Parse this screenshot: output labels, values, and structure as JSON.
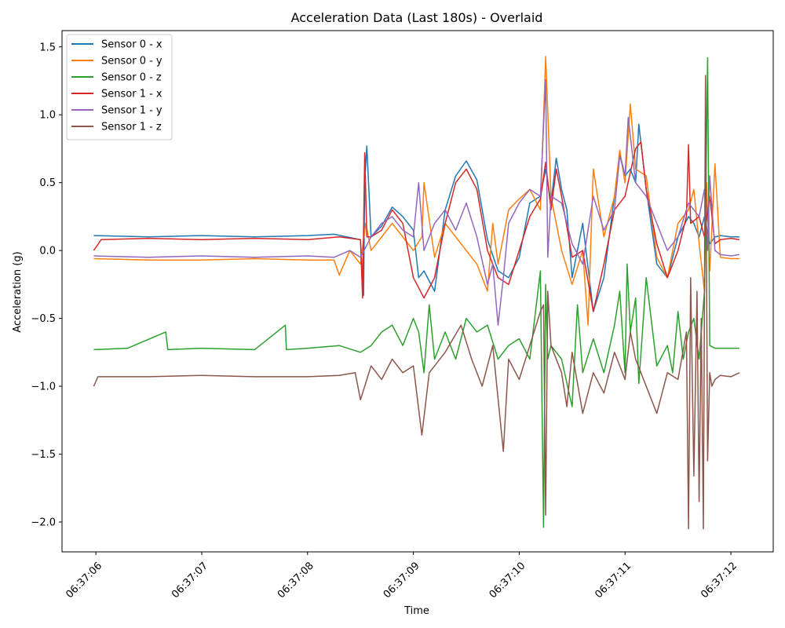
{
  "chart_data": {
    "type": "line",
    "title": "Acceleration Data (Last 180s) - Overlaid",
    "xlabel": "Time",
    "ylabel": "Acceleration (g)",
    "xlim": [
      "06:37:05.680",
      "06:37:12.400"
    ],
    "ylim": [
      -2.22,
      1.62
    ],
    "x_ticks": [
      "06:37:06",
      "06:37:07",
      "06:37:08",
      "06:37:09",
      "06:37:10",
      "06:37:11",
      "06:37:12"
    ],
    "y_ticks": [
      1.5,
      1.0,
      0.5,
      0.0,
      -0.5,
      -1.0,
      -1.5,
      -2.0
    ],
    "y_tick_labels": [
      "1.5",
      "1.0",
      "0.5",
      "0.0",
      "−0.5",
      "−1.0",
      "−1.5",
      "−2.0"
    ],
    "grid": false,
    "legend_position": "top-left",
    "x_unit": "time (HH:MM:SS.mmm)",
    "series": [
      {
        "name": "Sensor 0 - x",
        "color": "#1f77b4",
        "x": [
          "06:37:05.980",
          "06:37:06.500",
          "06:37:07.000",
          "06:37:07.500",
          "06:37:08.000",
          "06:37:08.250",
          "06:37:08.500",
          "06:37:08.530",
          "06:37:08.540",
          "06:37:08.560",
          "06:37:08.600",
          "06:37:08.700",
          "06:37:08.800",
          "06:37:08.900",
          "06:37:09.000",
          "06:37:09.050",
          "06:37:09.100",
          "06:37:09.200",
          "06:37:09.300",
          "06:37:09.400",
          "06:37:09.500",
          "06:37:09.600",
          "06:37:09.700",
          "06:37:09.800",
          "06:37:09.900",
          "06:37:10.000",
          "06:37:10.100",
          "06:37:10.200",
          "06:37:10.250",
          "06:37:10.300",
          "06:37:10.350",
          "06:37:10.400",
          "06:37:10.450",
          "06:37:10.500",
          "06:37:10.600",
          "06:37:10.700",
          "06:37:10.800",
          "06:37:10.900",
          "06:37:10.950",
          "06:37:11.000",
          "06:37:11.050",
          "06:37:11.100",
          "06:37:11.130",
          "06:37:11.200",
          "06:37:11.300",
          "06:37:11.400",
          "06:37:11.500",
          "06:37:11.600",
          "06:37:11.650",
          "06:37:11.700",
          "06:37:11.750",
          "06:37:11.800",
          "06:37:11.850",
          "06:37:11.900",
          "06:37:12.000",
          "06:37:12.080"
        ],
        "y": [
          0.11,
          0.1,
          0.11,
          0.1,
          0.11,
          0.12,
          0.08,
          -0.33,
          0.5,
          0.77,
          0.1,
          0.18,
          0.32,
          0.25,
          0.15,
          -0.2,
          -0.15,
          -0.3,
          0.3,
          0.55,
          0.66,
          0.52,
          0.08,
          -0.15,
          -0.2,
          -0.05,
          0.35,
          0.4,
          0.6,
          0.35,
          0.68,
          0.45,
          0.3,
          -0.2,
          0.2,
          -0.45,
          -0.2,
          0.4,
          0.72,
          0.55,
          0.6,
          0.5,
          0.93,
          0.45,
          -0.1,
          -0.2,
          0.1,
          0.25,
          0.2,
          0.1,
          0.25,
          0.05,
          0.1,
          0.11,
          0.1,
          0.1
        ]
      },
      {
        "name": "Sensor 0 - y",
        "color": "#ff7f0e",
        "x": [
          "06:37:05.980",
          "06:37:06.500",
          "06:37:07.000",
          "06:37:07.500",
          "06:37:08.000",
          "06:37:08.250",
          "06:37:08.300",
          "06:37:08.400",
          "06:37:08.500",
          "06:37:08.550",
          "06:37:08.600",
          "06:37:08.700",
          "06:37:08.800",
          "06:37:08.900",
          "06:37:09.000",
          "06:37:09.080",
          "06:37:09.100",
          "06:37:09.200",
          "06:37:09.300",
          "06:37:09.400",
          "06:37:09.500",
          "06:37:09.600",
          "06:37:09.700",
          "06:37:09.750",
          "06:37:09.800",
          "06:37:09.900",
          "06:37:10.000",
          "06:37:10.100",
          "06:37:10.200",
          "06:37:10.250",
          "06:37:10.300",
          "06:37:10.350",
          "06:37:10.400",
          "06:37:10.500",
          "06:37:10.600",
          "06:37:10.650",
          "06:37:10.700",
          "06:37:10.800",
          "06:37:10.900",
          "06:37:10.950",
          "06:37:11.000",
          "06:37:11.050",
          "06:37:11.100",
          "06:37:11.200",
          "06:37:11.300",
          "06:37:11.400",
          "06:37:11.500",
          "06:37:11.600",
          "06:37:11.650",
          "06:37:11.700",
          "06:37:11.750",
          "06:37:11.770",
          "06:37:11.790",
          "06:37:11.800",
          "06:37:11.850",
          "06:37:11.900",
          "06:37:12.000",
          "06:37:12.080"
        ],
        "y": [
          -0.06,
          -0.07,
          -0.07,
          -0.06,
          -0.07,
          -0.07,
          -0.18,
          0.0,
          -0.1,
          0.2,
          0.0,
          0.1,
          0.2,
          0.1,
          0.0,
          0.1,
          0.5,
          -0.05,
          0.2,
          0.1,
          0.0,
          -0.1,
          -0.3,
          0.2,
          -0.1,
          0.3,
          0.38,
          0.45,
          0.3,
          1.43,
          0.4,
          0.2,
          0.0,
          -0.25,
          0.0,
          -0.55,
          0.6,
          0.1,
          0.4,
          0.74,
          0.5,
          1.08,
          0.6,
          0.55,
          -0.05,
          -0.2,
          0.2,
          0.3,
          0.45,
          0.05,
          -0.3,
          0.5,
          0.05,
          -0.15,
          0.64,
          -0.05,
          -0.06,
          -0.06
        ]
      },
      {
        "name": "Sensor 0 - z",
        "color": "#2ca02c",
        "x": [
          "06:37:05.980",
          "06:37:06.300",
          "06:37:06.660",
          "06:37:06.680",
          "06:37:07.000",
          "06:37:07.500",
          "06:37:07.790",
          "06:37:07.800",
          "06:37:08.000",
          "06:37:08.300",
          "06:37:08.500",
          "06:37:08.600",
          "06:37:08.700",
          "06:37:08.800",
          "06:37:08.900",
          "06:37:09.000",
          "06:37:09.050",
          "06:37:09.100",
          "06:37:09.150",
          "06:37:09.200",
          "06:37:09.300",
          "06:37:09.400",
          "06:37:09.500",
          "06:37:09.600",
          "06:37:09.700",
          "06:37:09.800",
          "06:37:09.900",
          "06:37:10.000",
          "06:37:10.100",
          "06:37:10.200",
          "06:37:10.230",
          "06:37:10.250",
          "06:37:10.270",
          "06:37:10.300",
          "06:37:10.400",
          "06:37:10.500",
          "06:37:10.550",
          "06:37:10.600",
          "06:37:10.700",
          "06:37:10.800",
          "06:37:10.900",
          "06:37:10.950",
          "06:37:11.000",
          "06:37:11.020",
          "06:37:11.050",
          "06:37:11.100",
          "06:37:11.130",
          "06:37:11.200",
          "06:37:11.300",
          "06:37:11.400",
          "06:37:11.450",
          "06:37:11.500",
          "06:37:11.550",
          "06:37:11.600",
          "06:37:11.650",
          "06:37:11.700",
          "06:37:11.750",
          "06:37:11.780",
          "06:37:11.800",
          "06:37:11.850",
          "06:37:11.900",
          "06:37:12.000",
          "06:37:12.080"
        ],
        "y": [
          -0.73,
          -0.72,
          -0.6,
          -0.73,
          -0.72,
          -0.73,
          -0.55,
          -0.73,
          -0.72,
          -0.7,
          -0.75,
          -0.7,
          -0.6,
          -0.55,
          -0.7,
          -0.5,
          -0.6,
          -0.9,
          -0.4,
          -0.8,
          -0.6,
          -0.8,
          -0.5,
          -0.6,
          -0.55,
          -0.8,
          -0.7,
          -0.65,
          -0.8,
          -0.15,
          -2.04,
          -0.25,
          -0.8,
          -0.7,
          -0.8,
          -1.15,
          -0.4,
          -0.9,
          -0.65,
          -0.9,
          -0.55,
          -0.3,
          -0.9,
          -0.1,
          -0.6,
          -0.35,
          -0.98,
          -0.2,
          -0.85,
          -0.7,
          -0.9,
          -0.45,
          -0.8,
          -0.6,
          -0.5,
          -0.8,
          -0.3,
          1.42,
          -0.7,
          -0.72,
          -0.72,
          -0.72,
          -0.72
        ]
      },
      {
        "name": "Sensor 1 - x",
        "color": "#d62728",
        "x": [
          "06:37:05.980",
          "06:37:06.050",
          "06:37:06.500",
          "06:37:07.000",
          "06:37:07.500",
          "06:37:08.000",
          "06:37:08.300",
          "06:37:08.500",
          "06:37:08.520",
          "06:37:08.540",
          "06:37:08.560",
          "06:37:08.600",
          "06:37:08.700",
          "06:37:08.800",
          "06:37:08.900",
          "06:37:09.000",
          "06:37:09.100",
          "06:37:09.200",
          "06:37:09.300",
          "06:37:09.400",
          "06:37:09.500",
          "06:37:09.600",
          "06:37:09.700",
          "06:37:09.800",
          "06:37:09.900",
          "06:37:10.000",
          "06:37:10.100",
          "06:37:10.200",
          "06:37:10.250",
          "06:37:10.300",
          "06:37:10.350",
          "06:37:10.400",
          "06:37:10.500",
          "06:37:10.600",
          "06:37:10.700",
          "06:37:10.800",
          "06:37:10.900",
          "06:37:11.000",
          "06:37:11.100",
          "06:37:11.150",
          "06:37:11.200",
          "06:37:11.300",
          "06:37:11.400",
          "06:37:11.500",
          "06:37:11.580",
          "06:37:11.600",
          "06:37:11.620",
          "06:37:11.700",
          "06:37:11.750",
          "06:37:11.800",
          "06:37:11.850",
          "06:37:11.900",
          "06:37:12.000",
          "06:37:12.080"
        ],
        "y": [
          0.0,
          0.08,
          0.09,
          0.08,
          0.09,
          0.08,
          0.1,
          0.08,
          -0.35,
          0.72,
          0.1,
          0.1,
          0.15,
          0.3,
          0.2,
          -0.2,
          -0.35,
          -0.2,
          0.2,
          0.5,
          0.6,
          0.45,
          0.0,
          -0.2,
          -0.25,
          0.0,
          0.25,
          0.38,
          0.65,
          0.3,
          0.6,
          0.4,
          -0.05,
          0.0,
          -0.45,
          -0.1,
          0.3,
          0.4,
          0.75,
          0.8,
          0.45,
          0.05,
          -0.2,
          0.0,
          0.25,
          0.78,
          0.2,
          0.25,
          0.1,
          0.4,
          0.05,
          0.08,
          0.09,
          0.08
        ]
      },
      {
        "name": "Sensor 1 - y",
        "color": "#9467bd",
        "x": [
          "06:37:05.980",
          "06:37:06.500",
          "06:37:07.000",
          "06:37:07.500",
          "06:37:08.000",
          "06:37:08.250",
          "06:37:08.400",
          "06:37:08.500",
          "06:37:08.600",
          "06:37:08.700",
          "06:37:08.800",
          "06:37:08.900",
          "06:37:09.000",
          "06:37:09.050",
          "06:37:09.100",
          "06:37:09.200",
          "06:37:09.300",
          "06:37:09.400",
          "06:37:09.500",
          "06:37:09.600",
          "06:37:09.700",
          "06:37:09.750",
          "06:37:09.800",
          "06:37:09.850",
          "06:37:09.900",
          "06:37:10.000",
          "06:37:10.100",
          "06:37:10.200",
          "06:37:10.250",
          "06:37:10.270",
          "06:37:10.300",
          "06:37:10.400",
          "06:37:10.500",
          "06:37:10.600",
          "06:37:10.700",
          "06:37:10.800",
          "06:37:10.900",
          "06:37:10.950",
          "06:37:11.000",
          "06:37:11.030",
          "06:37:11.100",
          "06:37:11.200",
          "06:37:11.300",
          "06:37:11.400",
          "06:37:11.500",
          "06:37:11.600",
          "06:37:11.700",
          "06:37:11.750",
          "06:37:11.780",
          "06:37:11.800",
          "06:37:11.850",
          "06:37:11.900",
          "06:37:12.000",
          "06:37:12.080"
        ],
        "y": [
          -0.04,
          -0.05,
          -0.04,
          -0.05,
          -0.04,
          -0.05,
          0.0,
          -0.05,
          0.1,
          0.2,
          0.25,
          0.15,
          0.1,
          0.5,
          0.0,
          0.2,
          0.3,
          0.15,
          0.35,
          0.1,
          -0.25,
          -0.1,
          -0.55,
          -0.2,
          0.2,
          0.35,
          0.45,
          0.4,
          1.26,
          -0.05,
          0.4,
          0.35,
          0.05,
          -0.1,
          0.4,
          0.15,
          0.3,
          0.7,
          0.55,
          0.98,
          0.5,
          0.4,
          0.2,
          0.0,
          0.1,
          0.35,
          0.25,
          0.45,
          0.0,
          0.55,
          0.0,
          -0.03,
          -0.04,
          -0.03
        ]
      },
      {
        "name": "Sensor 1 - z",
        "color": "#8c564b",
        "x": [
          "06:37:05.980",
          "06:37:06.020",
          "06:37:06.500",
          "06:37:07.000",
          "06:37:07.500",
          "06:37:08.000",
          "06:37:08.300",
          "06:37:08.450",
          "06:37:08.500",
          "06:37:08.600",
          "06:37:08.700",
          "06:37:08.800",
          "06:37:08.900",
          "06:37:09.000",
          "06:37:09.080",
          "06:37:09.150",
          "06:37:09.300",
          "06:37:09.450",
          "06:37:09.550",
          "06:37:09.650",
          "06:37:09.750",
          "06:37:09.850",
          "06:37:09.900",
          "06:37:10.000",
          "06:37:10.100",
          "06:37:10.200",
          "06:37:10.230",
          "06:37:10.250",
          "06:37:10.270",
          "06:37:10.300",
          "06:37:10.400",
          "06:37:10.450",
          "06:37:10.500",
          "06:37:10.600",
          "06:37:10.700",
          "06:37:10.800",
          "06:37:10.900",
          "06:37:11.000",
          "06:37:11.050",
          "06:37:11.100",
          "06:37:11.200",
          "06:37:11.300",
          "06:37:11.400",
          "06:37:11.500",
          "06:37:11.580",
          "06:37:11.600",
          "06:37:11.620",
          "06:37:11.650",
          "06:37:11.680",
          "06:37:11.700",
          "06:37:11.720",
          "06:37:11.740",
          "06:37:11.760",
          "06:37:11.780",
          "06:37:11.800",
          "06:37:11.820",
          "06:37:11.850",
          "06:37:11.900",
          "06:37:12.000",
          "06:37:12.080"
        ],
        "y": [
          -1.0,
          -0.93,
          -0.93,
          -0.92,
          -0.93,
          -0.93,
          -0.92,
          -0.9,
          -1.1,
          -0.85,
          -0.95,
          -0.8,
          -0.9,
          -0.85,
          -1.36,
          -0.9,
          -0.75,
          -0.55,
          -0.8,
          -1.0,
          -0.7,
          -1.48,
          -0.8,
          -0.95,
          -0.7,
          -0.45,
          -0.4,
          -1.95,
          -0.3,
          -0.7,
          -0.9,
          -1.15,
          -0.75,
          -1.2,
          -0.9,
          -1.05,
          -0.75,
          -0.95,
          -0.6,
          -0.8,
          -1.0,
          -1.2,
          -0.9,
          -0.95,
          -0.6,
          -2.05,
          -0.2,
          -1.66,
          -0.3,
          -1.85,
          -0.5,
          -2.05,
          1.29,
          -1.55,
          -0.9,
          -1.0,
          -0.95,
          -0.92,
          -0.93,
          -0.9
        ]
      }
    ]
  }
}
